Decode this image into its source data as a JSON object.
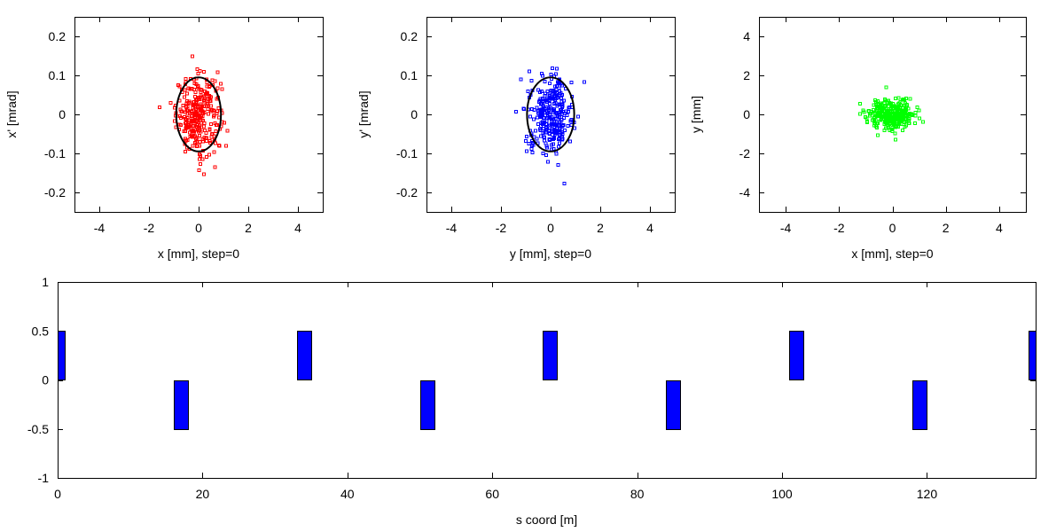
{
  "chart_data": [
    {
      "type": "scatter",
      "xlabel": "x [mm], step=0",
      "ylabel": "x' [mrad]",
      "xlim": [
        -5,
        5
      ],
      "ylim": [
        -0.25,
        0.25
      ],
      "xticks": [
        -4,
        -2,
        0,
        2,
        4
      ],
      "yticks": [
        -0.2,
        -0.1,
        0,
        0.1,
        0.2
      ],
      "ytick_labels": [
        "-0.2",
        "-0.1",
        "0",
        "0.1",
        "0.2"
      ],
      "point_color": "#ff0000",
      "point_count": 300,
      "x_spread_sd": 0.45,
      "y_spread_sd": 0.05,
      "ellipse": {
        "cx": 0,
        "cy": 0,
        "rx": 0.9,
        "ry": 0.095
      }
    },
    {
      "type": "scatter",
      "xlabel": "y [mm], step=0",
      "ylabel": "y' [mrad]",
      "xlim": [
        -5,
        5
      ],
      "ylim": [
        -0.25,
        0.25
      ],
      "xticks": [
        -4,
        -2,
        0,
        2,
        4
      ],
      "yticks": [
        -0.2,
        -0.1,
        0,
        0.1,
        0.2
      ],
      "ytick_labels": [
        "-0.2",
        "-0.1",
        "0",
        "0.1",
        "0.2"
      ],
      "point_color": "#0000ff",
      "point_count": 300,
      "x_spread_sd": 0.45,
      "y_spread_sd": 0.05,
      "ellipse": {
        "cx": 0,
        "cy": 0,
        "rx": 0.95,
        "ry": 0.095
      }
    },
    {
      "type": "scatter",
      "xlabel": "x [mm], step=0",
      "ylabel": "y [mm]",
      "xlim": [
        -5,
        5
      ],
      "ylim": [
        -5,
        5
      ],
      "xticks": [
        -4,
        -2,
        0,
        2,
        4
      ],
      "yticks": [
        -4,
        -2,
        0,
        2,
        4
      ],
      "ytick_labels": [
        "-4",
        "-2",
        "0",
        "2",
        "4"
      ],
      "point_color": "#00ff00",
      "point_count": 300,
      "x_spread_sd": 0.45,
      "y_spread_sd": 0.4
    },
    {
      "type": "bar",
      "xlabel": "s coord [m]",
      "ylabel": "",
      "xlim": [
        0,
        135
      ],
      "ylim": [
        -1,
        1
      ],
      "xticks": [
        0,
        20,
        40,
        60,
        80,
        100,
        120
      ],
      "yticks": [
        -1,
        -0.5,
        0,
        0.5,
        1
      ],
      "ytick_labels": [
        "-1",
        "-0.5",
        "0",
        "0.5",
        "1"
      ],
      "bar_color": "#0000ff",
      "elements": [
        {
          "start": 0,
          "end": 1,
          "value": 0.5
        },
        {
          "start": 16,
          "end": 18,
          "value": -0.5
        },
        {
          "start": 33,
          "end": 35,
          "value": 0.5
        },
        {
          "start": 50,
          "end": 52,
          "value": -0.5
        },
        {
          "start": 67,
          "end": 69,
          "value": 0.5
        },
        {
          "start": 84,
          "end": 86,
          "value": -0.5
        },
        {
          "start": 101,
          "end": 103,
          "value": 0.5
        },
        {
          "start": 118,
          "end": 120,
          "value": -0.5
        },
        {
          "start": 134,
          "end": 135,
          "value": 0.5
        }
      ]
    }
  ]
}
